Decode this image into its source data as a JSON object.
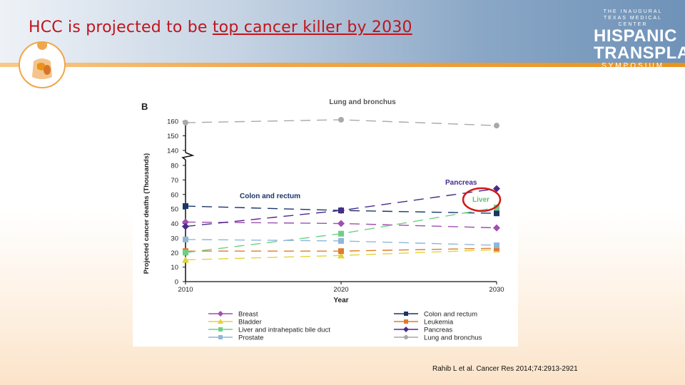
{
  "slide": {
    "title_prefix": "HCC is projected to be ",
    "title_underlined": "top cancer killer by 2030",
    "citation": "Rahib L et al. Cancer Res 2014;74:2913-2921"
  },
  "branding": {
    "line1": "THE INAUGURAL",
    "line2": "TEXAS MEDICAL CENTER",
    "word1": "HISPANIC",
    "word2": "TRANSPLANT",
    "word3": "SYMPOSIUM"
  },
  "colors": {
    "title": "#c0141c",
    "accent_orange": "#e8931d",
    "highlight_circle": "#d11a1a"
  },
  "chart_data": {
    "type": "line",
    "panel_label": "B",
    "xlabel": "Year",
    "ylabel": "Projected cancer deaths (Thousands)",
    "x": [
      2010,
      2020,
      2030
    ],
    "lower_axis_range": [
      0,
      80
    ],
    "upper_axis_range": [
      140,
      160
    ],
    "y_ticks": [
      0,
      10,
      20,
      30,
      40,
      50,
      60,
      70,
      80,
      140,
      150,
      160
    ],
    "annotations": [
      {
        "text": "Lung and bronchus",
        "series": "Lung and bronchus"
      },
      {
        "text": "Colon and rectum",
        "series": "Colon and rectum"
      },
      {
        "text": "Pancreas",
        "series": "Pancreas"
      },
      {
        "text": "Liver",
        "series": "Liver and intrahepatic bile duct",
        "circled": true
      }
    ],
    "series": [
      {
        "name": "Breast",
        "color": "#a04fb0",
        "marker": "diamond",
        "values": [
          41,
          40,
          37
        ]
      },
      {
        "name": "Colon and rectum",
        "color": "#1b3566",
        "marker": "square",
        "values": [
          52,
          49,
          47
        ]
      },
      {
        "name": "Bladder",
        "color": "#e3d23a",
        "marker": "triangle",
        "values": [
          15,
          18,
          22
        ]
      },
      {
        "name": "Leukemia",
        "color": "#e07b2a",
        "marker": "square",
        "values": [
          21,
          21,
          23
        ]
      },
      {
        "name": "Liver and intrahepatic bile duct",
        "color": "#6fcf86",
        "marker": "square",
        "values": [
          20,
          33,
          51
        ]
      },
      {
        "name": "Pancreas",
        "color": "#4a2a8c",
        "marker": "diamond",
        "values": [
          38,
          49,
          64
        ]
      },
      {
        "name": "Prostate",
        "color": "#8fb7d8",
        "marker": "square",
        "values": [
          29,
          28,
          25
        ]
      },
      {
        "name": "Lung and bronchus",
        "color": "#a9a9a9",
        "marker": "circle",
        "values": [
          159,
          161,
          157
        ]
      }
    ]
  }
}
